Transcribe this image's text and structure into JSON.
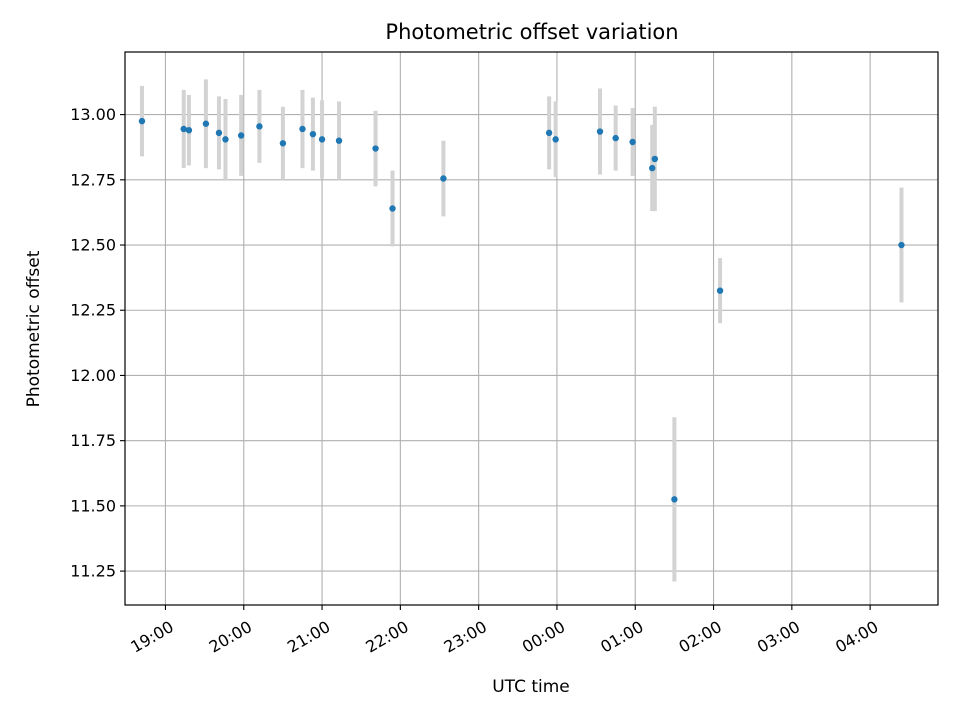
{
  "chart_data": {
    "type": "scatter",
    "title": "Photometric offset variation",
    "xlabel": "UTC time",
    "ylabel": "Photometric offset",
    "x_ticks": [
      "19:00",
      "20:00",
      "21:00",
      "22:00",
      "23:00",
      "00:00",
      "01:00",
      "02:00",
      "03:00",
      "04:00"
    ],
    "y_ticks": [
      "11.25",
      "11.50",
      "11.75",
      "12.00",
      "12.25",
      "12.50",
      "12.75",
      "13.00"
    ],
    "xlim": [
      "18:29",
      "04:52"
    ],
    "ylim": [
      11.12,
      13.24
    ],
    "grid": true,
    "colors": {
      "points": "#1f77b4",
      "errorbars": "#d3d3d3",
      "grid": "#b0b0b0"
    },
    "points": [
      {
        "x": "18:42",
        "y": 12.975,
        "err": 0.135
      },
      {
        "x": "19:14",
        "y": 12.945,
        "err": 0.15
      },
      {
        "x": "19:18",
        "y": 12.94,
        "err": 0.135
      },
      {
        "x": "19:31",
        "y": 12.965,
        "err": 0.17
      },
      {
        "x": "19:41",
        "y": 12.93,
        "err": 0.14
      },
      {
        "x": "19:46",
        "y": 12.905,
        "err": 0.155
      },
      {
        "x": "19:58",
        "y": 12.92,
        "err": 0.155
      },
      {
        "x": "20:12",
        "y": 12.955,
        "err": 0.14
      },
      {
        "x": "20:30",
        "y": 12.89,
        "err": 0.14
      },
      {
        "x": "20:45",
        "y": 12.945,
        "err": 0.15
      },
      {
        "x": "20:53",
        "y": 12.925,
        "err": 0.14
      },
      {
        "x": "21:00",
        "y": 12.905,
        "err": 0.15
      },
      {
        "x": "21:13",
        "y": 12.9,
        "err": 0.15
      },
      {
        "x": "21:41",
        "y": 12.87,
        "err": 0.145
      },
      {
        "x": "21:54",
        "y": 12.64,
        "err": 0.145
      },
      {
        "x": "22:33",
        "y": 12.755,
        "err": 0.145
      },
      {
        "x": "23:54",
        "y": 12.93,
        "err": 0.14
      },
      {
        "x": "23:59",
        "y": 12.905,
        "err": 0.145
      },
      {
        "x": "00:33",
        "y": 12.935,
        "err": 0.165
      },
      {
        "x": "00:45",
        "y": 12.91,
        "err": 0.125
      },
      {
        "x": "00:58",
        "y": 12.895,
        "err": 0.13
      },
      {
        "x": "01:13",
        "y": 12.795,
        "err": 0.165
      },
      {
        "x": "01:15",
        "y": 12.83,
        "err": 0.2
      },
      {
        "x": "01:30",
        "y": 11.525,
        "err": 0.315
      },
      {
        "x": "02:05",
        "y": 12.325,
        "err": 0.125
      },
      {
        "x": "04:24",
        "y": 12.5,
        "err": 0.22
      }
    ]
  }
}
